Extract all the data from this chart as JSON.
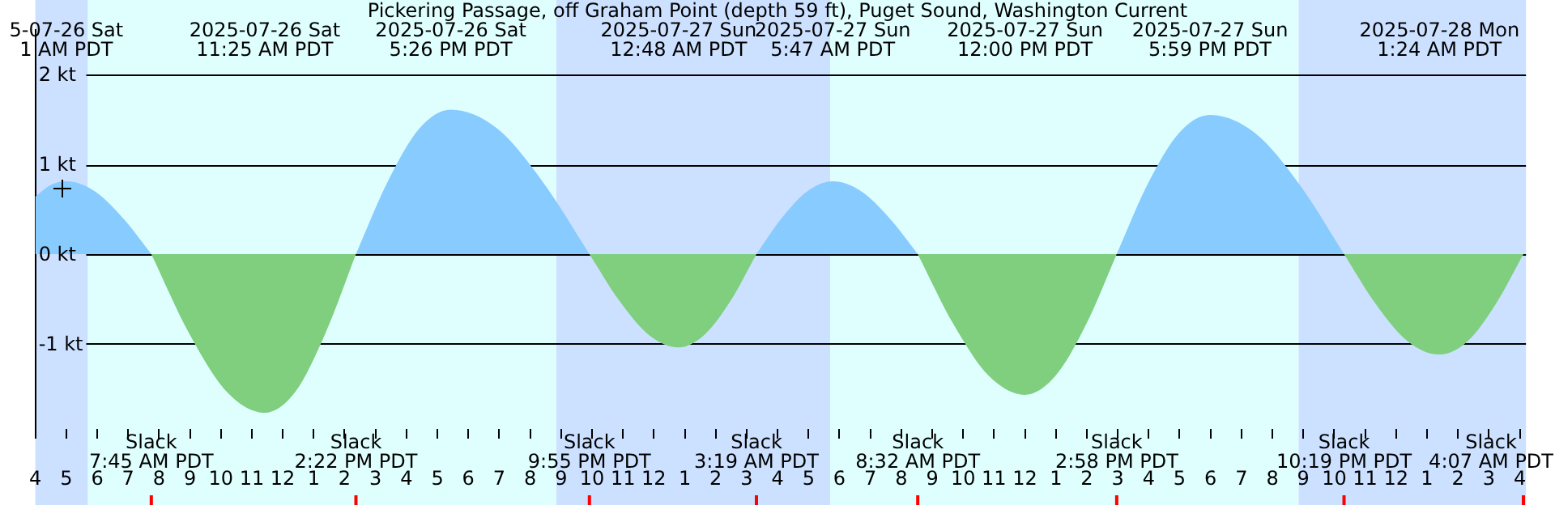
{
  "chart_data": {
    "type": "area",
    "title": "Pickering Passage, off Graham Point (depth 59 ft), Puget Sound, Washington Current",
    "xlim": [
      "2025-07-26T04:00",
      "2025-07-28T04:12"
    ],
    "xticks": [
      {
        "value": "2025-07-26T04:00",
        "label": "4"
      },
      {
        "value": "2025-07-26T05:00",
        "label": "5"
      },
      {
        "value": "2025-07-26T06:00",
        "label": "6"
      },
      {
        "value": "2025-07-26T07:00",
        "label": "7"
      },
      {
        "value": "2025-07-26T08:00",
        "label": "8"
      },
      {
        "value": "2025-07-26T09:00",
        "label": "9"
      },
      {
        "value": "2025-07-26T10:00",
        "label": "10"
      },
      {
        "value": "2025-07-26T11:00",
        "label": "11"
      },
      {
        "value": "2025-07-26T12:00",
        "label": "12"
      },
      {
        "value": "2025-07-26T13:00",
        "label": "1"
      },
      {
        "value": "2025-07-26T14:00",
        "label": "2"
      },
      {
        "value": "2025-07-26T15:00",
        "label": "3"
      },
      {
        "value": "2025-07-26T16:00",
        "label": "4"
      },
      {
        "value": "2025-07-26T17:00",
        "label": "5"
      },
      {
        "value": "2025-07-26T18:00",
        "label": "6"
      },
      {
        "value": "2025-07-26T19:00",
        "label": "7"
      },
      {
        "value": "2025-07-26T20:00",
        "label": "8"
      },
      {
        "value": "2025-07-26T21:00",
        "label": "9"
      },
      {
        "value": "2025-07-26T22:00",
        "label": "10"
      },
      {
        "value": "2025-07-26T23:00",
        "label": "11"
      },
      {
        "value": "2025-07-27T00:00",
        "label": "12"
      },
      {
        "value": "2025-07-27T01:00",
        "label": "1"
      },
      {
        "value": "2025-07-27T02:00",
        "label": "2"
      },
      {
        "value": "2025-07-27T03:00",
        "label": "3"
      },
      {
        "value": "2025-07-27T04:00",
        "label": "4"
      },
      {
        "value": "2025-07-27T05:00",
        "label": "5"
      },
      {
        "value": "2025-07-27T06:00",
        "label": "6"
      },
      {
        "value": "2025-07-27T07:00",
        "label": "7"
      },
      {
        "value": "2025-07-27T08:00",
        "label": "8"
      },
      {
        "value": "2025-07-27T09:00",
        "label": "9"
      },
      {
        "value": "2025-07-27T10:00",
        "label": "10"
      },
      {
        "value": "2025-07-27T11:00",
        "label": "11"
      },
      {
        "value": "2025-07-27T12:00",
        "label": "12"
      },
      {
        "value": "2025-07-27T13:00",
        "label": "1"
      },
      {
        "value": "2025-07-27T14:00",
        "label": "2"
      },
      {
        "value": "2025-07-27T15:00",
        "label": "3"
      },
      {
        "value": "2025-07-27T16:00",
        "label": "4"
      },
      {
        "value": "2025-07-27T17:00",
        "label": "5"
      },
      {
        "value": "2025-07-27T18:00",
        "label": "6"
      },
      {
        "value": "2025-07-27T19:00",
        "label": "7"
      },
      {
        "value": "2025-07-27T20:00",
        "label": "8"
      },
      {
        "value": "2025-07-27T21:00",
        "label": "9"
      },
      {
        "value": "2025-07-27T22:00",
        "label": "10"
      },
      {
        "value": "2025-07-27T23:00",
        "label": "11"
      },
      {
        "value": "2025-07-28T00:00",
        "label": "12"
      },
      {
        "value": "2025-07-28T01:00",
        "label": "1"
      },
      {
        "value": "2025-07-28T02:00",
        "label": "2"
      },
      {
        "value": "2025-07-28T03:00",
        "label": "3"
      },
      {
        "value": "2025-07-28T04:00",
        "label": "4"
      }
    ],
    "ylim": [
      -1.95,
      2.5
    ],
    "yticks": [
      {
        "value": 2,
        "label": "2 kt"
      },
      {
        "value": 1,
        "label": "1 kt"
      },
      {
        "value": 0,
        "label": "0 kt"
      },
      {
        "value": -1,
        "label": "-1 kt"
      }
    ],
    "grid": "y",
    "legend": false,
    "series": [
      {
        "color": "#87cbff",
        "x": [
          "2025-07-26T04:00",
          "2025-07-26T04:30",
          "2025-07-26T05:00",
          "2025-07-26T05:55",
          "2025-07-26T06:50",
          "2025-07-26T07:45"
        ],
        "values": [
          0.64,
          0.77,
          0.81,
          0.7,
          0.4,
          0
        ]
      },
      {
        "color": "#7fcf7f",
        "x": [
          "2025-07-26T07:45",
          "2025-07-26T08:58",
          "2025-07-26T10:12",
          "2025-07-26T11:25",
          "2025-07-26T12:24",
          "2025-07-26T13:23",
          "2025-07-26T14:22"
        ],
        "values": [
          0,
          -0.88,
          -1.54,
          -1.77,
          -1.54,
          -0.88,
          0
        ]
      },
      {
        "color": "#87cbff",
        "x": [
          "2025-07-26T14:22",
          "2025-07-26T15:23",
          "2025-07-26T16:25",
          "2025-07-26T17:26",
          "2025-07-26T18:56",
          "2025-07-26T20:25",
          "2025-07-26T21:55"
        ],
        "values": [
          0,
          0.8,
          1.4,
          1.61,
          1.4,
          0.8,
          0
        ]
      },
      {
        "color": "#7fcf7f",
        "x": [
          "2025-07-26T21:55",
          "2025-07-26T22:53",
          "2025-07-26T23:50",
          "2025-07-27T00:48",
          "2025-07-27T01:38",
          "2025-07-27T02:29",
          "2025-07-27T03:19"
        ],
        "values": [
          0,
          -0.52,
          -0.9,
          -1.04,
          -0.9,
          -0.52,
          0
        ]
      },
      {
        "color": "#87cbff",
        "x": [
          "2025-07-27T03:19",
          "2025-07-27T04:08",
          "2025-07-27T04:58",
          "2025-07-27T05:47",
          "2025-07-27T06:42",
          "2025-07-27T07:37",
          "2025-07-27T08:32"
        ],
        "values": [
          0,
          0.4,
          0.7,
          0.81,
          0.7,
          0.4,
          0
        ]
      },
      {
        "color": "#7fcf7f",
        "x": [
          "2025-07-27T08:32",
          "2025-07-27T09:41",
          "2025-07-27T10:50",
          "2025-07-27T12:00",
          "2025-07-27T12:59",
          "2025-07-27T13:59",
          "2025-07-27T14:58"
        ],
        "values": [
          0,
          -0.78,
          -1.36,
          -1.57,
          -1.36,
          -0.78,
          0
        ]
      },
      {
        "color": "#87cbff",
        "x": [
          "2025-07-27T14:58",
          "2025-07-27T15:58",
          "2025-07-27T16:59",
          "2025-07-27T17:59",
          "2025-07-27T19:26",
          "2025-07-27T20:52",
          "2025-07-27T22:19"
        ],
        "values": [
          0,
          0.78,
          1.35,
          1.55,
          1.35,
          0.78,
          0
        ]
      },
      {
        "color": "#7fcf7f",
        "x": [
          "2025-07-27T22:19",
          "2025-07-27T23:21",
          "2025-07-28T00:22",
          "2025-07-28T01:24",
          "2025-07-28T02:19",
          "2025-07-28T03:13",
          "2025-07-28T04:07"
        ],
        "values": [
          0,
          -0.56,
          -0.97,
          -1.12,
          -0.97,
          -0.56,
          0
        ]
      }
    ],
    "bands": [
      {
        "axis": "x",
        "from": "2025-07-26T04:00",
        "to": "2025-07-26T05:42",
        "color": "#cce0ff"
      },
      {
        "axis": "x",
        "from": "2025-07-26T05:42",
        "to": "2025-07-26T20:51",
        "color": "#dfffff"
      },
      {
        "axis": "x",
        "from": "2025-07-26T20:51",
        "to": "2025-07-27T05:42",
        "color": "#cce0ff"
      },
      {
        "axis": "x",
        "from": "2025-07-27T05:42",
        "to": "2025-07-27T20:51",
        "color": "#dfffff"
      },
      {
        "axis": "x",
        "from": "2025-07-27T20:51",
        "to": "2025-07-28T04:12",
        "color": "#cce0ff"
      }
    ],
    "annotations": [
      "5-07-26 Sat\n1 AM PDT",
      "2025-07-26 Sat\n11:25 AM PDT",
      "2025-07-26 Sat\n5:26 PM PDT",
      "2025-07-27 Sun\n12:48 AM PDT",
      "2025-07-27 Sun\n5:47 AM PDT",
      "2025-07-27 Sun\n12:00 PM PDT",
      "2025-07-27 Sun\n5:59 PM PDT",
      "2025-07-28 Mon\n1:24 AM PDT",
      "Slack\n7:45 AM PDT",
      "Slack\n2:22 PM PDT",
      "Slack\n9:55 PM PDT",
      "Slack\n3:19 AM PDT",
      "Slack\n8:32 AM PDT",
      "Slack\n2:58 PM PDT",
      "Slack\n10:19 PM PDT",
      "Slack\n4:07 AM PDT"
    ]
  }
}
